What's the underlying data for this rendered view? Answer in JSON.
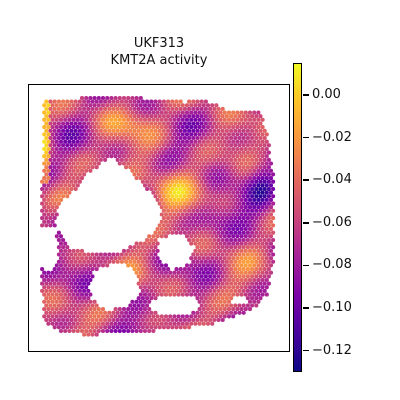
{
  "chart_data": {
    "type": "heatmap",
    "title": "UKF313",
    "subtitle": "KMT2A activity",
    "xlabel": "",
    "ylabel": "",
    "colormap": "plasma",
    "colorbar": {
      "min": -0.13,
      "max": 0.015,
      "ticks": [
        0.0,
        -0.02,
        -0.04,
        -0.06,
        -0.08,
        -0.1,
        -0.12
      ],
      "tick_labels": [
        "0.00",
        "−0.02",
        "−0.04",
        "−0.06",
        "−0.08",
        "−0.10",
        "−0.12"
      ]
    },
    "grid": false,
    "legend": "colorbar-right"
  },
  "colors": {
    "low": "#0d0887",
    "mid": "#cc4778",
    "high": "#f0f921",
    "frame": "#000000"
  }
}
